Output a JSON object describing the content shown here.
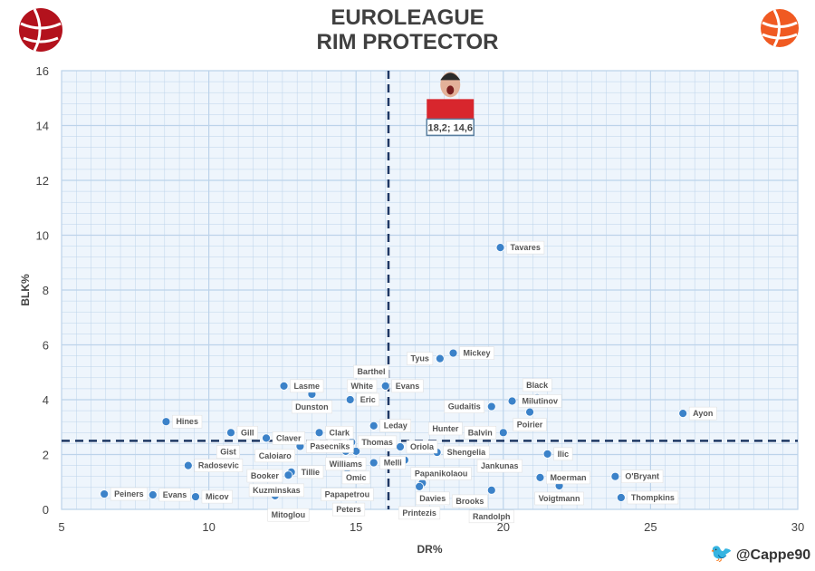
{
  "title_line1": "EUROLEAGUE",
  "title_line2": "RIM PROTECTOR",
  "credit": "@Cappe90",
  "icons": {
    "credit": "twitter-bird-icon",
    "left_logo": "basketball-logo-icon",
    "right_logo": "euroleague-logo-icon"
  },
  "colors": {
    "point": "#3b82c9",
    "refline": "#1f3864",
    "grid": "#bcd3ea",
    "bg": "#eef5fc"
  },
  "chart_data": {
    "type": "scatter",
    "title": "EUROLEAGUE RIM PROTECTOR",
    "xlabel": "DR%",
    "ylabel": "BLK%",
    "xlim": [
      5,
      30
    ],
    "ylim": [
      0,
      16
    ],
    "xticks": [
      5,
      10,
      15,
      20,
      25,
      30
    ],
    "yticks": [
      0,
      2,
      4,
      6,
      8,
      10,
      12,
      14,
      16
    ],
    "grid": true,
    "reference_lines": {
      "x": 16.1,
      "y": 2.5
    },
    "highlight": {
      "x": 18.2,
      "y": 14.6,
      "label": "18,2; 14,6"
    },
    "points": [
      {
        "name": "Tavares",
        "x": 19.9,
        "y": 9.55
      },
      {
        "name": "Mickey",
        "x": 18.3,
        "y": 5.7
      },
      {
        "name": "Tyus",
        "x": 17.85,
        "y": 5.5
      },
      {
        "name": "Evans",
        "x": 16.0,
        "y": 4.5
      },
      {
        "name": "Lasme",
        "x": 12.55,
        "y": 4.5
      },
      {
        "name": "Dunston",
        "x": 13.5,
        "y": 4.2
      },
      {
        "name": "Eric",
        "x": 14.8,
        "y": 4.0
      },
      {
        "name": "Milutinov",
        "x": 20.3,
        "y": 3.95
      },
      {
        "name": "Black",
        "x": 21.15,
        "y": 4.07
      },
      {
        "name": "Gudaitis",
        "x": 19.6,
        "y": 3.75
      },
      {
        "name": "Poirier",
        "x": 20.9,
        "y": 3.55
      },
      {
        "name": "Ayon",
        "x": 26.1,
        "y": 3.5
      },
      {
        "name": "Hines",
        "x": 8.55,
        "y": 3.2
      },
      {
        "name": "Leday",
        "x": 15.6,
        "y": 3.05
      },
      {
        "name": "Gill",
        "x": 10.75,
        "y": 2.8
      },
      {
        "name": "Clark",
        "x": 13.75,
        "y": 2.8
      },
      {
        "name": "Balvin",
        "x": 20.0,
        "y": 2.8
      },
      {
        "name": "Claver",
        "x": 11.95,
        "y": 2.6
      },
      {
        "name": "Pasecniks",
        "x": 13.1,
        "y": 2.3
      },
      {
        "name": "Thomas",
        "x": 14.85,
        "y": 2.45
      },
      {
        "name": "Williams",
        "x": 14.65,
        "y": 2.12
      },
      {
        "name": "Omic",
        "x": 15.0,
        "y": 2.12
      },
      {
        "name": "Oriola",
        "x": 16.5,
        "y": 2.28
      },
      {
        "name": "Shengelia",
        "x": 17.75,
        "y": 2.08
      },
      {
        "name": "Jankunas",
        "x": 18.9,
        "y": 2.08
      },
      {
        "name": "Ilic",
        "x": 21.5,
        "y": 2.02
      },
      {
        "name": "Radosevic",
        "x": 9.3,
        "y": 1.6
      },
      {
        "name": "Gist",
        "x": 10.05,
        "y": 1.6
      },
      {
        "name": "Tillie",
        "x": 12.8,
        "y": 1.36
      },
      {
        "name": "Papapetrou",
        "x": 14.7,
        "y": 1.5
      },
      {
        "name": "Melli",
        "x": 15.6,
        "y": 1.7
      },
      {
        "name": "Papanikolaou",
        "x": 16.65,
        "y": 1.8
      },
      {
        "name": "Kuzminskas",
        "x": 12.3,
        "y": 1.16
      },
      {
        "name": "Mitoglou",
        "x": 12.7,
        "y": 1.25
      },
      {
        "name": "Davies",
        "x": 17.6,
        "y": 1.36
      },
      {
        "name": "White",
        "x": 15.2,
        "y": 1.06
      },
      {
        "name": "Hunter",
        "x": 17.25,
        "y": 0.96
      },
      {
        "name": "Printezis",
        "x": 17.15,
        "y": 0.83
      },
      {
        "name": "Moerman",
        "x": 21.25,
        "y": 1.16
      },
      {
        "name": "Voigtmann",
        "x": 21.9,
        "y": 0.86
      },
      {
        "name": "O'Bryant",
        "x": 23.8,
        "y": 1.2
      },
      {
        "name": "Booker",
        "x": 11.9,
        "y": 0.76
      },
      {
        "name": "Caloiaro",
        "x": 12.25,
        "y": 0.5
      },
      {
        "name": "Barthel",
        "x": 14.7,
        "y": 0.56
      },
      {
        "name": "Peters",
        "x": 14.75,
        "y": 0.46
      },
      {
        "name": "Brooks",
        "x": 18.05,
        "y": 0.3
      },
      {
        "name": "Randolph",
        "x": 19.6,
        "y": 0.7
      },
      {
        "name": "Thompkins",
        "x": 24.0,
        "y": 0.43
      },
      {
        "name": "Peiners",
        "x": 6.45,
        "y": 0.56
      },
      {
        "name": "Evans",
        "x": 8.1,
        "y": 0.53
      },
      {
        "name": "Micov",
        "x": 9.55,
        "y": 0.46
      }
    ]
  }
}
